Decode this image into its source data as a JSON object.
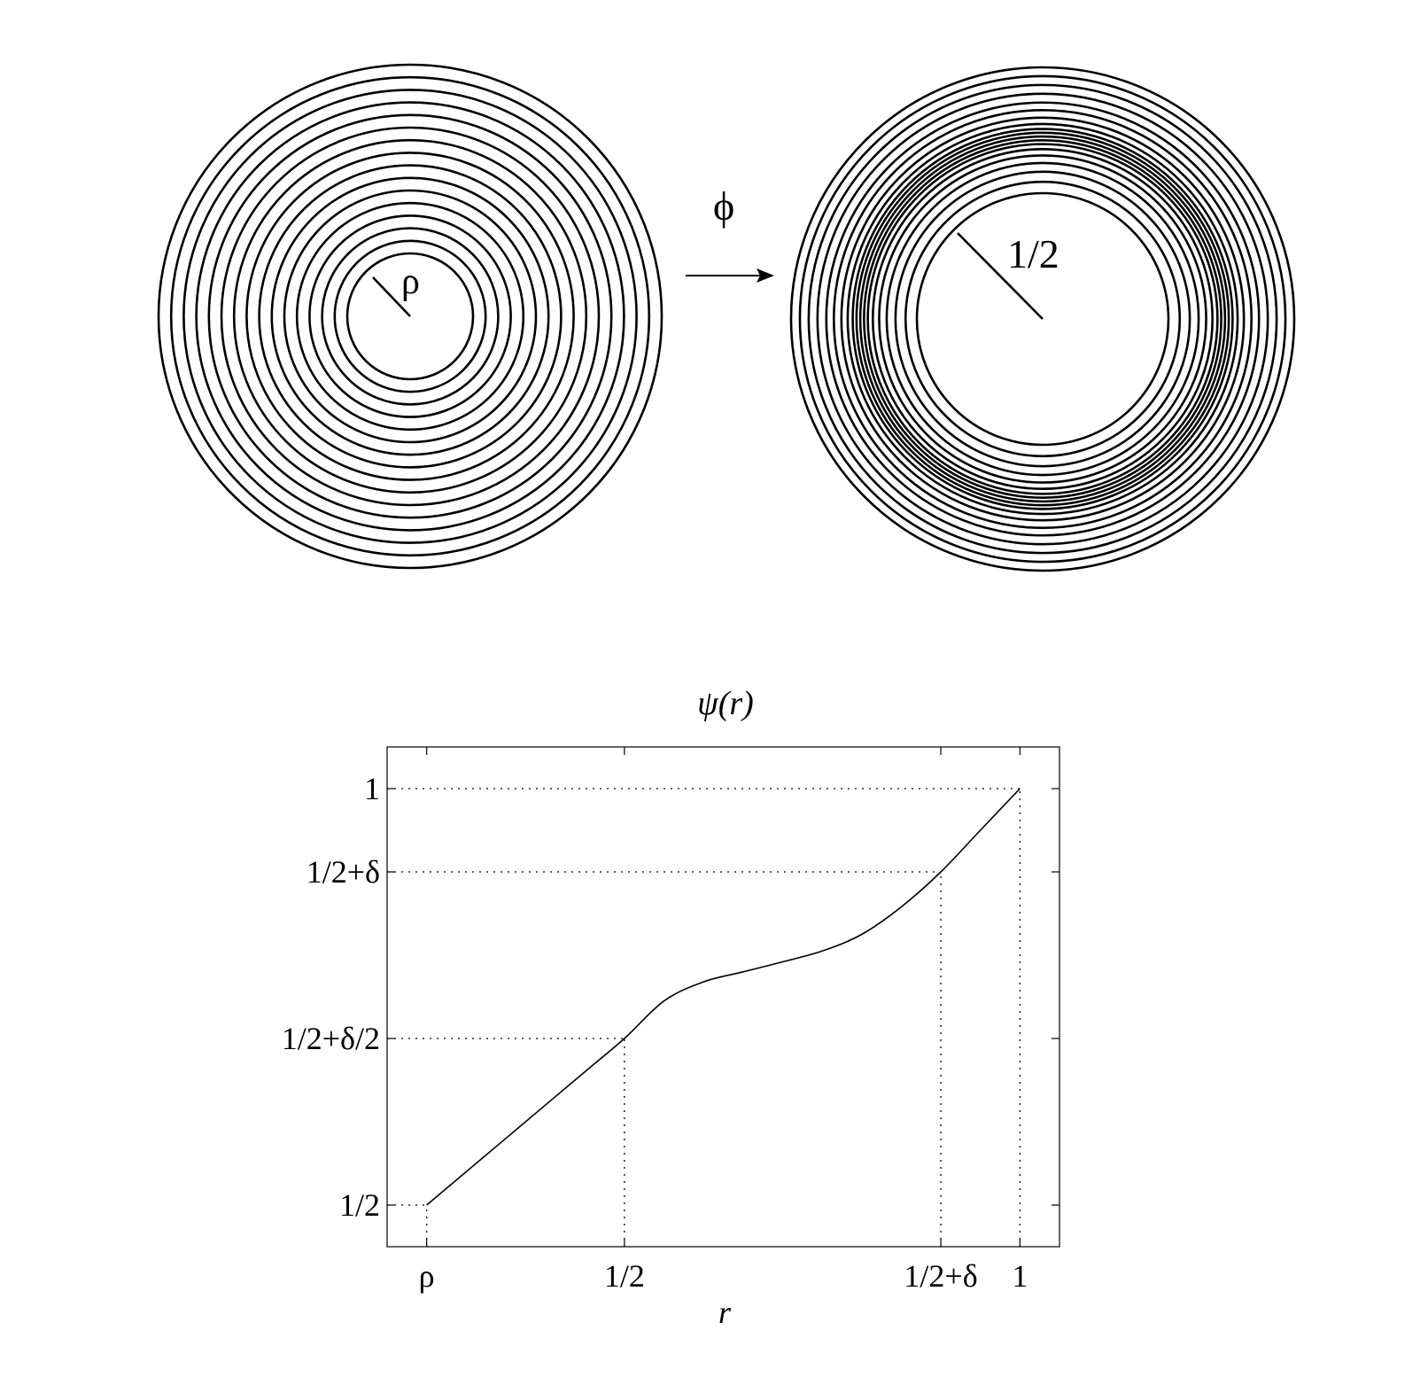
{
  "left_disk": {
    "radius_label": "ρ",
    "ring_radii": [
      0.25,
      0.3,
      0.35,
      0.4,
      0.45,
      0.5,
      0.55,
      0.6,
      0.65,
      0.7,
      0.75,
      0.8,
      0.85,
      0.9,
      0.95,
      1.0
    ]
  },
  "map_label": "ϕ",
  "right_disk": {
    "radius_label": "1/2",
    "ring_radii": [
      0.5,
      0.545,
      0.585,
      0.62,
      0.65,
      0.675,
      0.695,
      0.71,
      0.725,
      0.74,
      0.755,
      0.775,
      0.8,
      0.83,
      0.86,
      0.895,
      0.93,
      0.965,
      1.0
    ]
  },
  "chart_data": {
    "type": "line",
    "title": "ψ(r)",
    "xlabel": "r",
    "ylabel": "",
    "x_ticks": [
      {
        "value": 0.25,
        "label": "ρ"
      },
      {
        "value": 0.5,
        "label": "1/2"
      },
      {
        "value": 0.9,
        "label": "1/2+δ"
      },
      {
        "value": 1.0,
        "label": "1"
      }
    ],
    "y_ticks": [
      {
        "value": 0.5,
        "label": "1/2"
      },
      {
        "value": 0.7,
        "label": "1/2+δ/2"
      },
      {
        "value": 0.9,
        "label": "1/2+δ"
      },
      {
        "value": 1.0,
        "label": "1"
      }
    ],
    "xlim": [
      0.2,
      1.05
    ],
    "ylim": [
      0.45,
      1.05
    ],
    "grid": "dotted guides at tick values",
    "series": [
      {
        "x": [
          0.25,
          0.3,
          0.35,
          0.4,
          0.45,
          0.5,
          0.55,
          0.6,
          0.65,
          0.7,
          0.75,
          0.8,
          0.85,
          0.9,
          0.95,
          1.0
        ],
        "y": [
          0.5,
          0.54,
          0.58,
          0.62,
          0.66,
          0.7,
          0.745,
          0.768,
          0.78,
          0.792,
          0.805,
          0.825,
          0.858,
          0.9,
          0.95,
          1.0
        ]
      }
    ]
  }
}
